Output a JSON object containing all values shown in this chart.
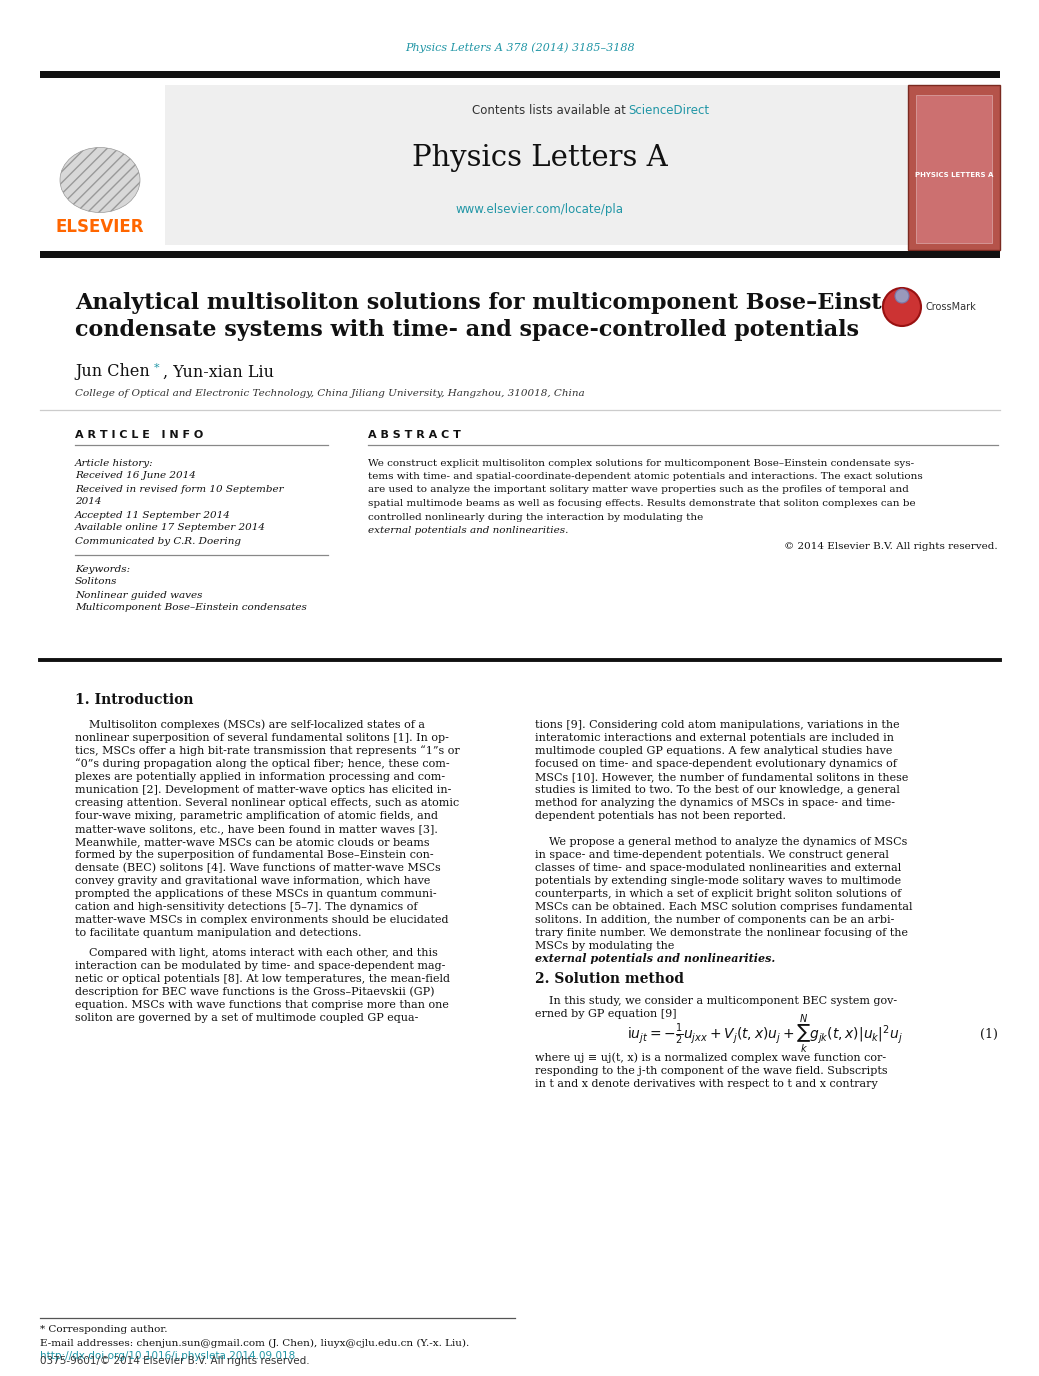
{
  "page_title": "Physics Letters A 378 (2014) 3185–3188",
  "journal_name": "Physics Letters A",
  "journal_url": "www.elsevier.com/locate/pla",
  "contents_text_plain": "Contents lists available at ",
  "contents_sciencedirect": "ScienceDirect",
  "paper_title_line1": "Analytical multisoliton solutions for multicomponent Bose–Einstein",
  "paper_title_line2": "condensate systems with time- and space-controlled potentials",
  "author_name": "Jun Chen",
  "author_star": "*",
  "author_rest": ", Yun-xian Liu",
  "affiliation": "College of Optical and Electronic Technology, China Jiliang University, Hangzhou, 310018, China",
  "article_info_header": "A R T I C L E   I N F O",
  "abstract_header": "A B S T R A C T",
  "article_history_label": "Article history:",
  "received_line": "Received 16 June 2014",
  "received_revised1": "Received in revised form 10 September",
  "received_revised2": "2014",
  "accepted": "Accepted 11 September 2014",
  "available_online": "Available online 17 September 2014",
  "communicated": "Communicated by C.R. Doering",
  "keywords_label": "Keywords:",
  "keyword1": "Solitons",
  "keyword2": "Nonlinear guided waves",
  "keyword3": "Multicomponent Bose–Einstein condensates",
  "abstract_lines": [
    "We construct explicit multisoliton complex solutions for multicomponent Bose–Einstein condensate sys-",
    "tems with time- and spatial-coordinate-dependent atomic potentials and interactions. The exact solutions",
    "are used to analyze the important solitary matter wave properties such as the profiles of temporal and",
    "spatial multimode beams as well as focusing effects. Results demonstrate that soliton complexes can be",
    "controlled nonlinearly during the interaction by modulating the "
  ],
  "abstract_last_italic": "external potentials and nonlinearities.",
  "copyright": "© 2014 Elsevier B.V. All rights reserved.",
  "section1_title": "1. Introduction",
  "intro_col1": [
    "    Multisoliton complexes (MSCs) are self-localized states of a",
    "nonlinear superposition of several fundamental solitons [1]. In op-",
    "tics, MSCs offer a high bit-rate transmission that represents “1”s or",
    "“0”s during propagation along the optical fiber; hence, these com-",
    "plexes are potentially applied in information processing and com-",
    "munication [2]. Development of matter-wave optics has elicited in-",
    "creasing attention. Several nonlinear optical effects, such as atomic",
    "four-wave mixing, parametric amplification of atomic fields, and",
    "matter-wave solitons, etc., have been found in matter waves [3].",
    "Meanwhile, matter-wave MSCs can be atomic clouds or beams",
    "formed by the superposition of fundamental Bose–Einstein con-",
    "densate (BEC) solitons [4]. Wave functions of matter-wave MSCs",
    "convey gravity and gravitational wave information, which have",
    "prompted the applications of these MSCs in quantum communi-",
    "cation and high-sensitivity detections [5–7]. The dynamics of",
    "matter-wave MSCs in complex environments should be elucidated",
    "to facilitate quantum manipulation and detections."
  ],
  "intro_col1_p2": [
    "    Compared with light, atoms interact with each other, and this",
    "interaction can be modulated by time- and space-dependent mag-",
    "netic or optical potentials [8]. At low temperatures, the mean-field",
    "description for BEC wave functions is the Gross–Pitaevskii (GP)",
    "equation. MSCs with wave functions that comprise more than one",
    "soliton are governed by a set of multimode coupled GP equa-"
  ],
  "intro_col2_p1": [
    "tions [9]. Considering cold atom manipulations, variations in the",
    "interatomic interactions and external potentials are included in",
    "multimode coupled GP equations. A few analytical studies have",
    "focused on time- and space-dependent evolutionary dynamics of",
    "MSCs [10]. However, the number of fundamental solitons in these",
    "studies is limited to two. To the best of our knowledge, a general",
    "method for analyzing the dynamics of MSCs in space- and time-",
    "dependent potentials has not been reported."
  ],
  "intro_col2_p2": [
    "    We propose a general method to analyze the dynamics of MSCs",
    "in space- and time-dependent potentials. We construct general",
    "classes of time- and space-modulated nonlinearities and external",
    "potentials by extending single-mode solitary waves to multimode",
    "counterparts, in which a set of explicit bright soliton solutions of",
    "MSCs can be obtained. Each MSC solution comprises fundamental",
    "solitons. In addition, the number of components can be an arbi-",
    "trary finite number. We demonstrate the nonlinear focusing of the",
    "MSCs by modulating the "
  ],
  "col2_p2_italic": "external potentials and nonlinearities.",
  "section2_title": "2. Solution method",
  "sec2_intro1": "    In this study, we consider a multicomponent BEC system gov-",
  "sec2_intro2": "erned by GP equation [9]",
  "where_lines": [
    "where uj ≡ uj(t, x) is a normalized complex wave function cor-",
    "responding to the j-th component of the wave field. Subscripts",
    "in t and x denote derivatives with respect to t and x contrary"
  ],
  "footnote_star": "* Corresponding author.",
  "footnote_email": "E-mail addresses: chenjun.sun@gmail.com (J. Chen), liuyx@cjlu.edu.cn (Y.-x. Liu).",
  "footer_doi": "http://dx.doi.org/10.1016/j.physleta.2014.09.018",
  "footer_issn": "0375-9601/© 2014 Elsevier B.V. All rights reserved.",
  "bg_color": "#ffffff",
  "header_bar_color": "#111111",
  "elsevier_orange": "#FF6600",
  "link_color": "#2196A6",
  "journal_bg": "#efefef",
  "journal_spine_color": "#b5534a",
  "text_color": "#111111",
  "italic_color": "#111111",
  "gray_line": "#aaaaaa",
  "body_fs": 8.0,
  "title_fs": 16.0,
  "author_fs": 11.5,
  "affil_fs": 7.5,
  "header_fs": 8.0,
  "section_fs": 10.0
}
